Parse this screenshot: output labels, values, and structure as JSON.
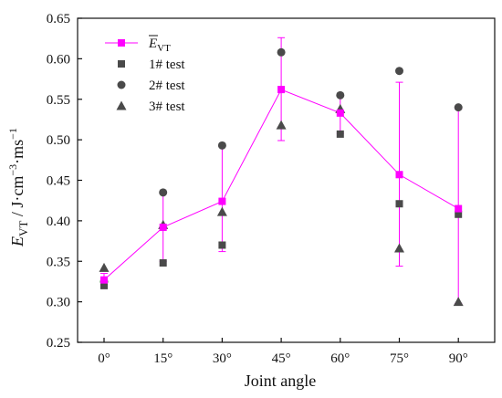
{
  "chart_data": {
    "type": "scatter",
    "categories": [
      "0°",
      "15°",
      "30°",
      "45°",
      "60°",
      "75°",
      "90°"
    ],
    "xlabel": "Joint angle",
    "ylabel_parts": {
      "base": "E",
      "sub": "VT",
      "units": " / J·cm",
      "exp1": "−3",
      "mid": "·ms",
      "exp2": "−1"
    },
    "ylim": [
      0.25,
      0.65
    ],
    "yticks": [
      0.25,
      0.3,
      0.35,
      0.4,
      0.45,
      0.5,
      0.55,
      0.6,
      0.65
    ],
    "grid": false,
    "legend_position": "top-left",
    "series": [
      {
        "name": "E̅VT",
        "legend_base": "E",
        "legend_sub": "VT",
        "marker": "square",
        "color": "#ff00ff",
        "line": true,
        "values": [
          0.327,
          0.392,
          0.424,
          0.562,
          0.533,
          0.457,
          0.415
        ],
        "error_upper": [
          0.335,
          0.435,
          0.492,
          0.626,
          0.555,
          0.571,
          0.538
        ],
        "error_lower": [
          0.32,
          0.35,
          0.362,
          0.499,
          0.508,
          0.344,
          0.298
        ]
      },
      {
        "name": "1# test",
        "marker": "square",
        "color": "#4a4a4a",
        "values": [
          0.32,
          0.348,
          0.37,
          null,
          0.507,
          0.421,
          0.408
        ]
      },
      {
        "name": "2# test",
        "marker": "circle",
        "color": "#4a4a4a",
        "values": [
          0.325,
          0.435,
          0.493,
          0.608,
          0.555,
          0.585,
          0.54
        ]
      },
      {
        "name": "3# test",
        "marker": "triangle",
        "color": "#4a4a4a",
        "values": [
          0.342,
          0.395,
          0.411,
          0.518,
          0.538,
          0.366,
          0.3
        ]
      }
    ]
  }
}
